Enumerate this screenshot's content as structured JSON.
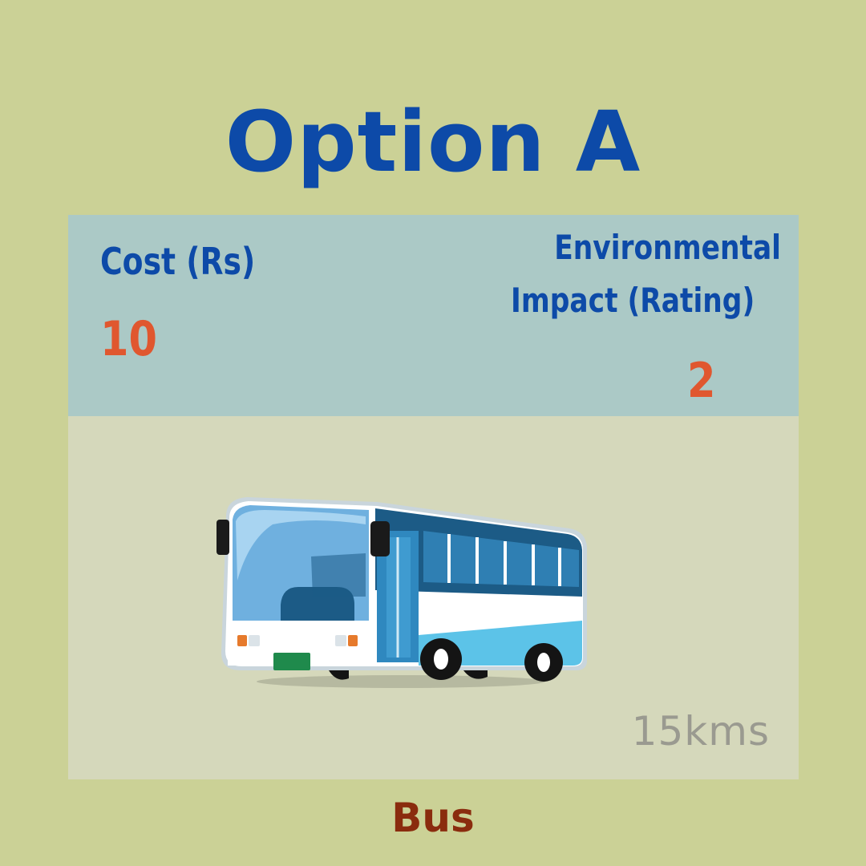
{
  "title": "Option A",
  "info": {
    "cost_label": "Cost (Rs)",
    "cost_value": "10",
    "env_label_line1": "Environmental",
    "env_label_line2": "Impact (Rating)",
    "env_value": "2"
  },
  "image": {
    "icon": "bus-icon",
    "distance": "15kms"
  },
  "vehicle_label": "Bus",
  "colors": {
    "background": "#cbd196",
    "title": "#0d4aa8",
    "info_panel": "#abc9c6",
    "value": "#e0572f",
    "image_panel": "#d5d8bb",
    "vehicle_label": "#8a2c0e"
  }
}
